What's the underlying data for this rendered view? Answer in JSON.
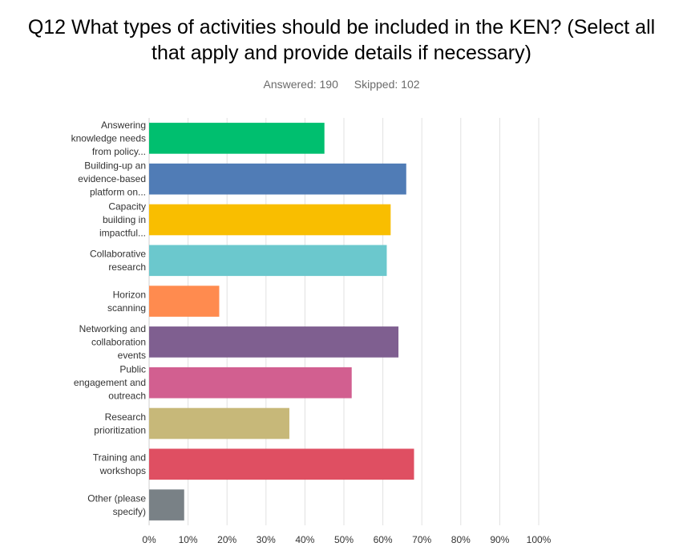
{
  "title_lines": [
    "Q12 What types of activities should be included in the KEN? (Select all",
    "that apply and provide details if necessary)"
  ],
  "stats": {
    "answered": "Answered: 190",
    "skipped": "Skipped: 102"
  },
  "chart_data": {
    "type": "bar",
    "orientation": "horizontal",
    "categories": [
      [
        "Answering",
        "knowledge needs",
        "from policy..."
      ],
      [
        "Building-up an",
        "evidence-based",
        "platform on..."
      ],
      [
        "Capacity",
        "building in",
        "impactful..."
      ],
      [
        "Collaborative",
        "research"
      ],
      [
        "Horizon",
        "scanning"
      ],
      [
        "Networking and",
        "collaboration",
        "events"
      ],
      [
        "Public",
        "engagement and",
        "outreach"
      ],
      [
        "Research",
        "prioritization"
      ],
      [
        "Training and",
        "workshops"
      ],
      [
        "Other (please",
        "specify)"
      ]
    ],
    "values": [
      45,
      66,
      62,
      61,
      18,
      64,
      52,
      36,
      68,
      9
    ],
    "colors": [
      "#00bf6f",
      "#507cb6",
      "#f9be00",
      "#6bc8cd",
      "#ff8b4f",
      "#7f5f90",
      "#d25f90",
      "#c7b879",
      "#df4f62",
      "#798186"
    ],
    "xlim": [
      0,
      100
    ],
    "xticks": [
      "0%",
      "10%",
      "20%",
      "30%",
      "40%",
      "50%",
      "60%",
      "70%",
      "80%",
      "90%",
      "100%"
    ],
    "xlabel": "",
    "ylabel": "",
    "grid": true
  }
}
